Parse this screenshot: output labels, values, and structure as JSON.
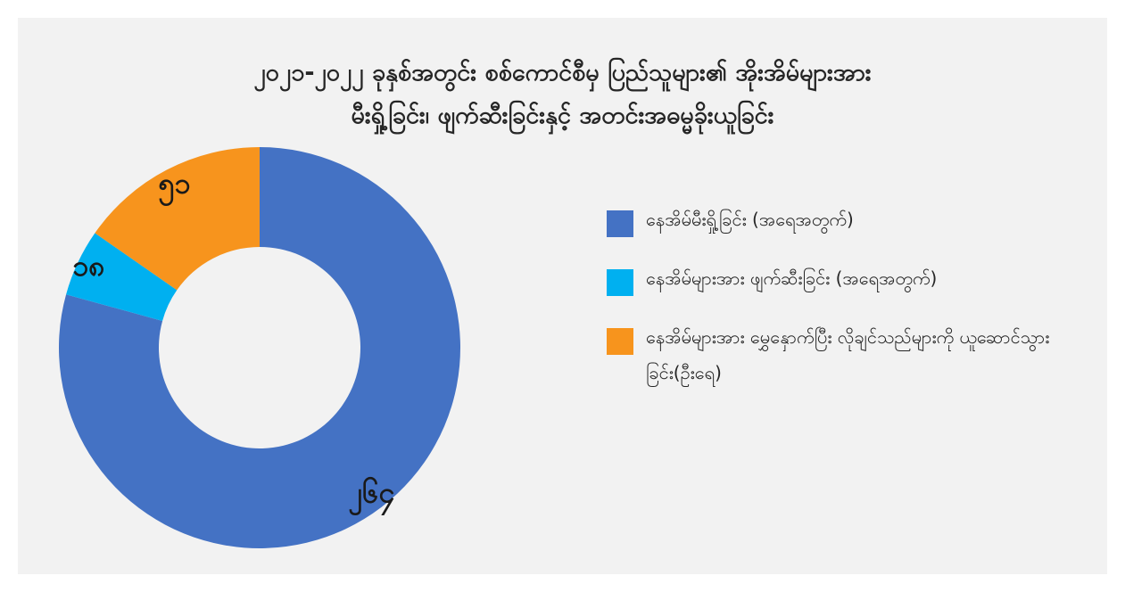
{
  "chart_data": {
    "type": "pie",
    "donut": true,
    "title_lines": [
      "၂၀၂၁-၂၀၂၂ ခုနှစ်အတွင်း စစ်ကောင်စီမှ ပြည်သူများ၏ အိုးအိမ်များအား",
      "မီးရှို့ခြင်း၊ ဖျက်ဆီးခြင်းနှင့် အတင်းအဓမ္မခိုးယူခြင်း"
    ],
    "slices": [
      {
        "name": "နေအိမ်မီးရှို့ခြင်း (အရေအတွက်)",
        "value": 264,
        "label": "၂၆၄",
        "color": "#4472c4"
      },
      {
        "name": "နေအိမ်များအား ဖျက်ဆီးခြင်း (အရေအတွက်)",
        "value": 18,
        "label": "၁၈",
        "color": "#00b0f0"
      },
      {
        "name": "နေအိမ်များအား မွှေနှောက်ပြီး လိုချင်သည်များကို ယူဆောင်သွားခြင်း(ဦးရေ)",
        "value": 51,
        "label": "၅၁",
        "color": "#f7941d"
      }
    ],
    "legend_position": "right"
  }
}
